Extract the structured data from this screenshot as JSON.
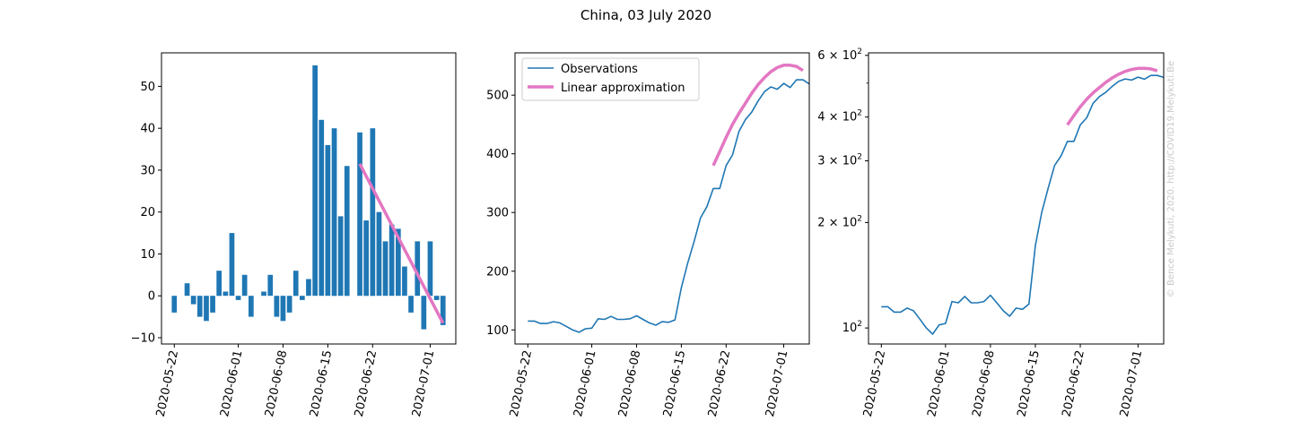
{
  "figure": {
    "title": "China, 03 July 2020",
    "credit": "© Bence Melykuti, 2020. http://COVID19.Melykuti.Be"
  },
  "colors": {
    "observations": "#1f77b4",
    "approximation": "#e377c2",
    "bar": "#1f77b4"
  },
  "chart_data": [
    {
      "type": "bar",
      "title": "",
      "xlabel": "",
      "ylabel": "",
      "x_start": "2020-05-22",
      "xticks": [
        "2020-05-22",
        "2020-06-01",
        "2020-06-08",
        "2020-06-15",
        "2020-06-22",
        "2020-07-01"
      ],
      "yticks": [
        "−10",
        "0",
        "10",
        "20",
        "30",
        "40",
        "50"
      ],
      "ylim": [
        -11.5,
        58
      ],
      "categories": [
        "2020-05-22",
        "2020-05-23",
        "2020-05-24",
        "2020-05-25",
        "2020-05-26",
        "2020-05-27",
        "2020-05-28",
        "2020-05-29",
        "2020-05-30",
        "2020-05-31",
        "2020-06-01",
        "2020-06-02",
        "2020-06-03",
        "2020-06-04",
        "2020-06-05",
        "2020-06-06",
        "2020-06-07",
        "2020-06-08",
        "2020-06-09",
        "2020-06-10",
        "2020-06-11",
        "2020-06-12",
        "2020-06-13",
        "2020-06-14",
        "2020-06-15",
        "2020-06-16",
        "2020-06-17",
        "2020-06-18",
        "2020-06-19",
        "2020-06-20",
        "2020-06-21",
        "2020-06-22",
        "2020-06-23",
        "2020-06-24",
        "2020-06-25",
        "2020-06-26",
        "2020-06-27",
        "2020-06-28",
        "2020-06-29",
        "2020-06-30",
        "2020-07-01",
        "2020-07-02",
        "2020-07-03"
      ],
      "values": [
        -4,
        0,
        3,
        -2,
        -5,
        -6,
        -4,
        6,
        1,
        15,
        -1,
        5,
        -5,
        0,
        1,
        5,
        -5,
        -6,
        -4,
        6,
        -1,
        4,
        55,
        42,
        36,
        40,
        19,
        31,
        0,
        39,
        18,
        40,
        20,
        13,
        17,
        16,
        7,
        -4,
        13,
        -8,
        13,
        -1,
        -7
      ],
      "series": [
        {
          "name": "Linear approximation",
          "x": [
            "2020-06-20",
            "2020-07-03"
          ],
          "values": [
            31.5,
            -6.5
          ]
        }
      ]
    },
    {
      "type": "line",
      "title": "",
      "xlabel": "",
      "ylabel": "",
      "xticks": [
        "2020-05-22",
        "2020-06-01",
        "2020-06-08",
        "2020-06-15",
        "2020-06-22",
        "2020-07-01"
      ],
      "yticks": [
        "100",
        "200",
        "300",
        "400",
        "500"
      ],
      "ylim": [
        76,
        572
      ],
      "legend": "top-left",
      "series": [
        {
          "name": "Observations",
          "x_start": "2020-05-22",
          "values": [
            115,
            115,
            111,
            111,
            114,
            112,
            106,
            100,
            96,
            102,
            103,
            119,
            118,
            123,
            118,
            118,
            119,
            124,
            118,
            112,
            108,
            114,
            113,
            117,
            172,
            214,
            251,
            291,
            310,
            341,
            341,
            380,
            398,
            438,
            458,
            471,
            490,
            506,
            514,
            510,
            520,
            513,
            526,
            526,
            519
          ]
        },
        {
          "name": "Linear approximation",
          "x_start": "2020-06-20",
          "values": [
            380,
            404,
            428,
            450,
            469,
            486,
            503,
            518,
            530,
            540,
            547,
            551,
            551,
            549,
            542
          ]
        }
      ]
    },
    {
      "type": "line",
      "scale": "log",
      "title": "",
      "xlabel": "",
      "ylabel": "",
      "xticks": [
        "2020-05-22",
        "2020-06-01",
        "2020-06-08",
        "2020-06-15",
        "2020-06-22",
        "2020-07-01"
      ],
      "yticks": [
        {
          "base": "10",
          "exp": "2",
          "mantissa": "",
          "value": 100
        },
        {
          "base": "10",
          "exp": "2",
          "mantissa": "2",
          "value": 200
        },
        {
          "base": "10",
          "exp": "2",
          "mantissa": "3",
          "value": 300
        },
        {
          "base": "10",
          "exp": "2",
          "mantissa": "4",
          "value": 400
        },
        {
          "base": "10",
          "exp": "2",
          "mantissa": "6",
          "value": 600
        }
      ],
      "ylim": [
        90,
        610
      ],
      "series": [
        {
          "name": "Observations",
          "x_start": "2020-05-22",
          "values": [
            115,
            115,
            111,
            111,
            114,
            112,
            106,
            100,
            96,
            102,
            103,
            119,
            118,
            123,
            118,
            118,
            119,
            124,
            118,
            112,
            108,
            114,
            113,
            117,
            172,
            214,
            251,
            291,
            310,
            341,
            341,
            380,
            398,
            438,
            458,
            471,
            490,
            506,
            514,
            510,
            520,
            513,
            526,
            526,
            519
          ]
        },
        {
          "name": "Linear approximation",
          "x_start": "2020-06-20",
          "values": [
            380,
            404,
            428,
            450,
            469,
            486,
            503,
            518,
            530,
            540,
            547,
            551,
            551,
            549,
            542
          ]
        }
      ]
    }
  ]
}
